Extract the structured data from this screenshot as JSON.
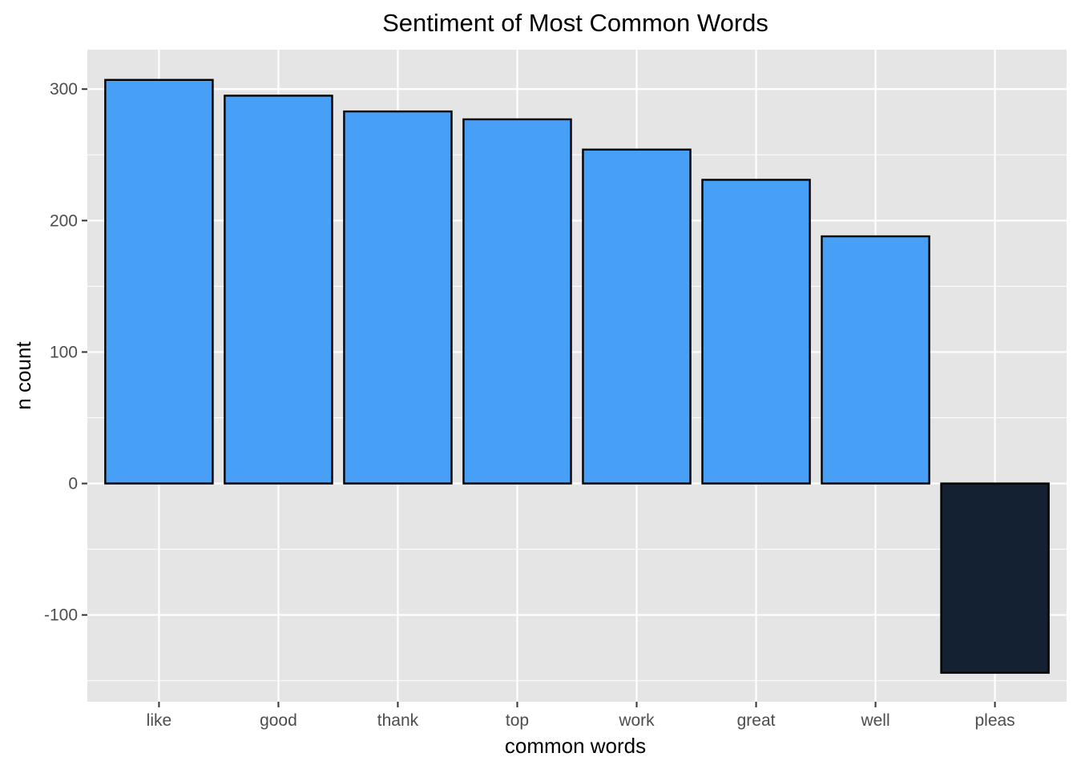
{
  "chart_data": {
    "type": "bar",
    "title": "Sentiment of Most Common Words",
    "xlabel": "common words",
    "ylabel": "n count",
    "categories": [
      "like",
      "good",
      "thank",
      "top",
      "work",
      "great",
      "well",
      "pleas"
    ],
    "values": [
      307,
      295,
      283,
      277,
      254,
      231,
      188,
      -144
    ],
    "ylim": [
      -166,
      330
    ],
    "yticks": [
      -100,
      0,
      100,
      200,
      300
    ],
    "grid": true,
    "legend": "none"
  },
  "colors": {
    "panel_background": "#e5e5e5",
    "grid": "#ffffff",
    "positive_fill": "#489ff6",
    "negative_fill": "#132132",
    "bar_outline": "#000000",
    "tick_text": "#4d4d4d"
  }
}
